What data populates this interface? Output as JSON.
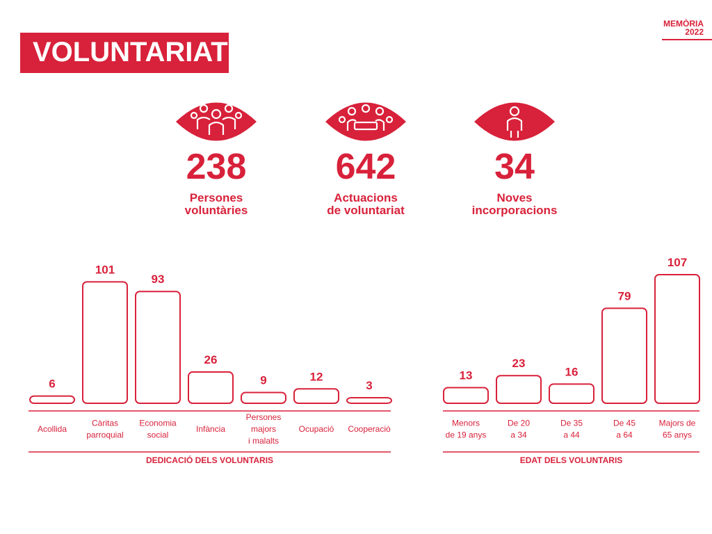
{
  "header": {
    "title": "VOLUNTARIAT"
  },
  "logo": {
    "line1": "MEMÒRIA",
    "line2": "2022"
  },
  "colors": {
    "accent": "#d8213a"
  },
  "stats": [
    {
      "icon": "group-eye-icon",
      "value": "238",
      "label": "Persones\nvoluntàries"
    },
    {
      "icon": "meeting-eye-icon",
      "value": "642",
      "label": "Actuacions\nde voluntariat"
    },
    {
      "icon": "person-eye-icon",
      "value": "34",
      "label": "Noves\nincorporacions"
    }
  ],
  "chart_data": [
    {
      "type": "bar",
      "title": "DEDICACIÓ DELS VOLUNTARIS",
      "categories": [
        "Acollida",
        "Càritas\nparroquial",
        "Economia\nsocial",
        "Infància",
        "Persones\nmajors\ni malalts",
        "Ocupació",
        "Cooperació"
      ],
      "values": [
        6,
        101,
        93,
        26,
        9,
        12,
        3
      ]
    },
    {
      "type": "bar",
      "title": "EDAT DELS VOLUNTARIS",
      "categories": [
        "Menors\nde 19 anys",
        "De 20\na 34",
        "De 35\na 44",
        "De 45\na 64",
        "Majors de\n65 anys"
      ],
      "values": [
        13,
        23,
        16,
        79,
        107
      ]
    }
  ]
}
